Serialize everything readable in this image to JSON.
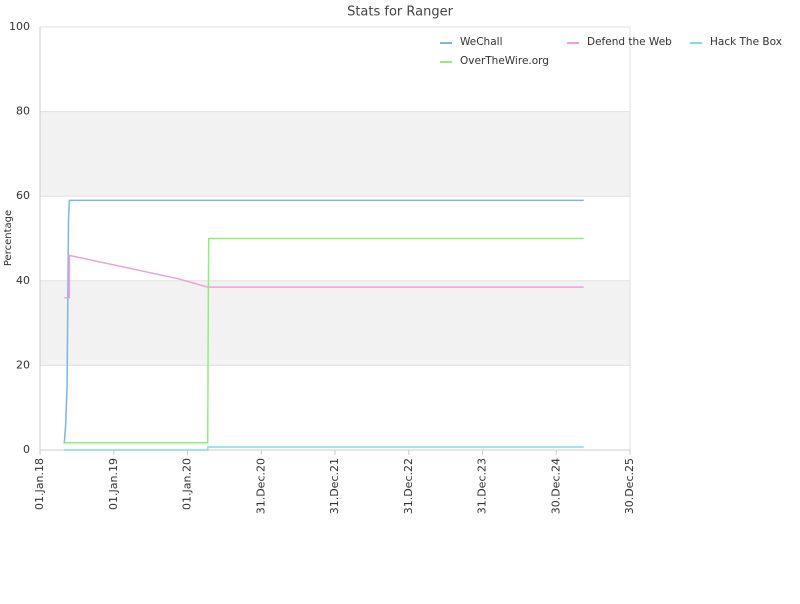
{
  "chart_data": {
    "type": "line",
    "title": "Stats for Ranger",
    "y_label": "Percentage",
    "xlim": [
      "2018-01-01",
      "2025-12-30"
    ],
    "xticks": [
      {
        "value": "2018-01-01",
        "label": "01.Jan.18"
      },
      {
        "value": "2019-01-01",
        "label": "01.Jan.19"
      },
      {
        "value": "2020-01-01",
        "label": "01.Jan.20"
      },
      {
        "value": "2020-12-31",
        "label": "31.Dec.20"
      },
      {
        "value": "2021-12-31",
        "label": "31.Dec.21"
      },
      {
        "value": "2022-12-31",
        "label": "31.Dec.22"
      },
      {
        "value": "2023-12-31",
        "label": "31.Dec.23"
      },
      {
        "value": "2024-12-30",
        "label": "30.Dec.24"
      },
      {
        "value": "2025-12-30",
        "label": "30.Dec.25"
      }
    ],
    "ylim": [
      0,
      100
    ],
    "yticks": [
      0,
      20,
      40,
      60,
      80,
      100
    ],
    "grid": true,
    "alternate_bands": true,
    "legend": "top-right",
    "series": [
      {
        "name": "WeChall",
        "color": "#7cb5ec",
        "x": [
          "2018-05-01",
          "2018-05-08",
          "2018-05-15",
          "2018-05-22",
          "2018-05-26",
          "2025-05-15"
        ],
        "values": [
          1.5,
          6,
          15,
          54,
          59,
          59
        ]
      },
      {
        "name": "Defend the Web",
        "color": "#f0a0d8",
        "x": [
          "2018-05-01",
          "2018-05-26",
          "2018-05-27",
          "2019-11-15",
          "2020-04-10",
          "2025-05-15"
        ],
        "values": [
          36,
          36,
          46,
          40.5,
          38.5,
          38.5
        ]
      },
      {
        "name": "Hack The Box",
        "color": "#80dede",
        "x": [
          "2018-05-01",
          "2020-04-10",
          "2020-04-11",
          "2025-05-15"
        ],
        "values": [
          0,
          0,
          0.7,
          0.7
        ]
      },
      {
        "name": "OverTheWire.org",
        "color": "#90ed7d",
        "x": [
          "2018-05-01",
          "2020-04-10",
          "2020-04-13",
          "2020-04-15",
          "2025-05-15"
        ],
        "values": [
          1.7,
          1.7,
          35,
          50,
          50
        ]
      }
    ]
  }
}
